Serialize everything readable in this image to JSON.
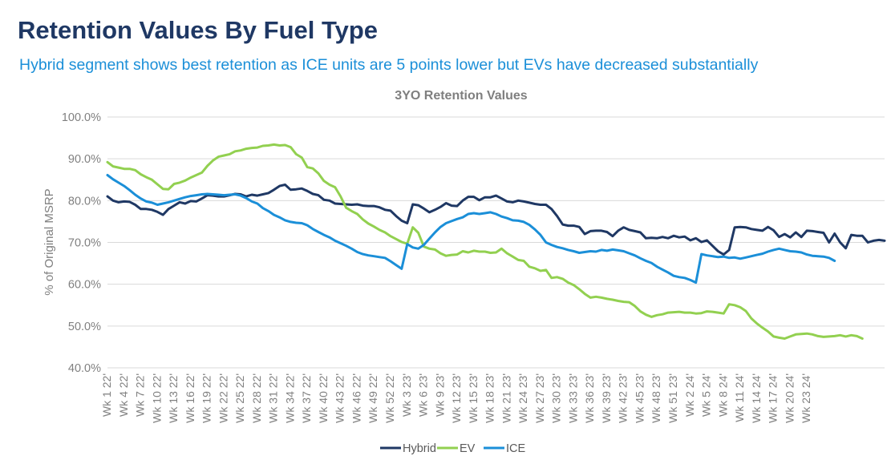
{
  "heading": "Retention Values By Fuel Type",
  "subheading": "Hybrid segment shows best retention as ICE units are 5 points lower but EVs have decreased substantially",
  "chart_data": {
    "type": "line",
    "title": "3YO Retention Values",
    "xlabel": "",
    "ylabel": "% of Original MSRP",
    "ylim": [
      40.0,
      100.0
    ],
    "yticks": [
      "100.0%",
      "90.0%",
      "80.0%",
      "70.0%",
      "60.0%",
      "50.0%",
      "40.0%"
    ],
    "ytick_values": [
      100,
      90,
      80,
      70,
      60,
      50,
      40
    ],
    "grid": "horizontal",
    "legend_position": "bottom",
    "x_tick_labels": [
      "Wk 1 22'",
      "Wk 4 22'",
      "Wk 7 22'",
      "Wk 10 22'",
      "Wk 13 22'",
      "Wk 16 22'",
      "Wk 19 22'",
      "Wk 22 22'",
      "Wk 25 22'",
      "Wk 28 22'",
      "Wk 31 22'",
      "Wk 34 22'",
      "Wk 37 22'",
      "Wk 40 22'",
      "Wk 43 22'",
      "Wk 46 22'",
      "Wk 49 22'",
      "Wk 52 22'",
      "Wk 3 23'",
      "Wk 6 23'",
      "Wk 9 23'",
      "Wk 12 23'",
      "Wk 15 23'",
      "Wk 18 23'",
      "Wk 21 23'",
      "Wk 24 23'",
      "Wk 27 23'",
      "Wk 30 23'",
      "Wk 33 23'",
      "Wk 36 23'",
      "Wk 39 23'",
      "Wk 42 23'",
      "Wk 45 23'",
      "Wk 48 23'",
      "Wk 51 23'",
      "Wk 2 24'",
      "Wk 5 24'",
      "Wk 8 24'",
      "Wk 11 24'",
      "Wk 14 24'",
      "Wk 17 24'",
      "Wk 20 24'",
      "Wk 23 24'"
    ],
    "series": [
      {
        "name": "Hybrid",
        "color": "#1f3864",
        "values": [
          81.0,
          80.0,
          79.6,
          79.8,
          79.7,
          79.0,
          78.0,
          78.0,
          77.8,
          77.3,
          76.6,
          78.0,
          78.8,
          79.6,
          79.3,
          79.9,
          79.8,
          80.5,
          81.3,
          81.2,
          81.0,
          81.0,
          81.3,
          81.6,
          81.5,
          81.0,
          81.4,
          81.2,
          81.5,
          81.8,
          82.6,
          83.5,
          83.8,
          82.6,
          82.7,
          82.9,
          82.3,
          81.6,
          81.3,
          80.2,
          80.0,
          79.3,
          79.2,
          79.1,
          79.0,
          79.1,
          78.8,
          78.7,
          78.7,
          78.4,
          77.8,
          77.6,
          76.3,
          75.2,
          74.6,
          79.1,
          78.9,
          78.1,
          77.2,
          77.8,
          78.5,
          79.4,
          78.8,
          78.7,
          80.0,
          80.9,
          80.9,
          80.1,
          80.8,
          80.8,
          81.2,
          80.5,
          79.8,
          79.6,
          80.0,
          79.8,
          79.5,
          79.2,
          79.0,
          79.0,
          78.0,
          76.3,
          74.3,
          74.0,
          74.0,
          73.7,
          72.0,
          72.7,
          72.8,
          72.8,
          72.5,
          71.5,
          72.8,
          73.6,
          73.0,
          72.7,
          72.4,
          71.0,
          71.1,
          71.0,
          71.3,
          71.0,
          71.6,
          71.2,
          71.4,
          70.5,
          71.0,
          70.1,
          70.5,
          69.2,
          67.9,
          67.1,
          68.2,
          73.6,
          73.7,
          73.6,
          73.2,
          73.0,
          72.8,
          73.7,
          72.9,
          71.3,
          72.0,
          71.2,
          72.4,
          71.3,
          72.8,
          72.7,
          72.5,
          72.3,
          70.0,
          72.1,
          70.0,
          68.6,
          71.8,
          71.6,
          71.6,
          70.0,
          70.4,
          70.6,
          70.4
        ]
      },
      {
        "name": "EV",
        "color": "#92d050",
        "values": [
          89.2,
          88.2,
          87.9,
          87.6,
          87.6,
          87.3,
          86.3,
          85.6,
          85.0,
          83.9,
          82.8,
          82.7,
          84.0,
          84.3,
          84.8,
          85.5,
          86.1,
          86.7,
          88.3,
          89.6,
          90.5,
          90.8,
          91.1,
          91.8,
          92.0,
          92.4,
          92.6,
          92.7,
          93.1,
          93.2,
          93.4,
          93.2,
          93.3,
          92.8,
          91.1,
          90.3,
          88.0,
          87.7,
          86.5,
          84.7,
          83.8,
          83.2,
          81.0,
          78.3,
          77.5,
          76.8,
          75.5,
          74.5,
          73.8,
          73.0,
          72.4,
          71.5,
          70.8,
          70.1,
          69.7,
          73.6,
          72.3,
          69.0,
          68.5,
          68.3,
          67.4,
          66.8,
          67.0,
          67.1,
          67.9,
          67.6,
          68.0,
          67.8,
          67.8,
          67.5,
          67.6,
          68.5,
          67.4,
          66.6,
          65.8,
          65.6,
          64.2,
          63.8,
          63.2,
          63.4,
          61.5,
          61.7,
          61.3,
          60.4,
          59.8,
          58.8,
          57.7,
          56.8,
          57.0,
          56.8,
          56.5,
          56.3,
          56.0,
          55.8,
          55.7,
          54.8,
          53.5,
          52.7,
          52.2,
          52.6,
          52.8,
          53.2,
          53.3,
          53.4,
          53.2,
          53.2,
          53.0,
          53.1,
          53.5,
          53.4,
          53.2,
          53.0,
          55.2,
          55.0,
          54.5,
          53.6,
          51.8,
          50.6,
          49.6,
          48.7,
          47.5,
          47.2,
          47.0,
          47.5,
          48.0,
          48.1,
          48.2,
          48.0,
          47.6,
          47.4,
          47.5,
          47.6,
          47.8,
          47.5,
          47.8,
          47.6,
          47.0
        ]
      },
      {
        "name": "ICE",
        "color": "#1b8fd8",
        "values": [
          86.1,
          85.1,
          84.3,
          83.5,
          82.5,
          81.4,
          80.5,
          79.8,
          79.5,
          79.0,
          79.3,
          79.6,
          80.0,
          80.4,
          80.8,
          81.1,
          81.3,
          81.5,
          81.6,
          81.5,
          81.4,
          81.3,
          81.4,
          81.5,
          81.2,
          80.6,
          79.8,
          79.3,
          78.2,
          77.5,
          76.6,
          76.0,
          75.3,
          74.9,
          74.7,
          74.6,
          74.1,
          73.2,
          72.5,
          71.8,
          71.2,
          70.4,
          69.8,
          69.2,
          68.5,
          67.7,
          67.2,
          66.9,
          66.7,
          66.5,
          66.3,
          65.5,
          64.6,
          63.7,
          69.6,
          68.8,
          68.5,
          69.4,
          70.9,
          72.4,
          73.7,
          74.6,
          75.1,
          75.6,
          76.0,
          76.8,
          77.0,
          76.8,
          77.0,
          77.2,
          76.8,
          76.2,
          75.8,
          75.3,
          75.2,
          74.9,
          74.2,
          73.1,
          71.8,
          70.0,
          69.4,
          68.9,
          68.6,
          68.2,
          67.9,
          67.5,
          67.7,
          67.9,
          67.8,
          68.2,
          68.0,
          68.3,
          68.1,
          67.9,
          67.4,
          66.9,
          66.2,
          65.6,
          65.1,
          64.2,
          63.5,
          62.8,
          62.0,
          61.7,
          61.5,
          61.0,
          60.4,
          67.2,
          66.9,
          66.7,
          66.5,
          66.6,
          66.3,
          66.4,
          66.1,
          66.4,
          66.7,
          67.0,
          67.3,
          67.8,
          68.2,
          68.5,
          68.2,
          67.9,
          67.8,
          67.6,
          67.1,
          66.8,
          66.7,
          66.6,
          66.3,
          65.6
        ]
      }
    ]
  }
}
